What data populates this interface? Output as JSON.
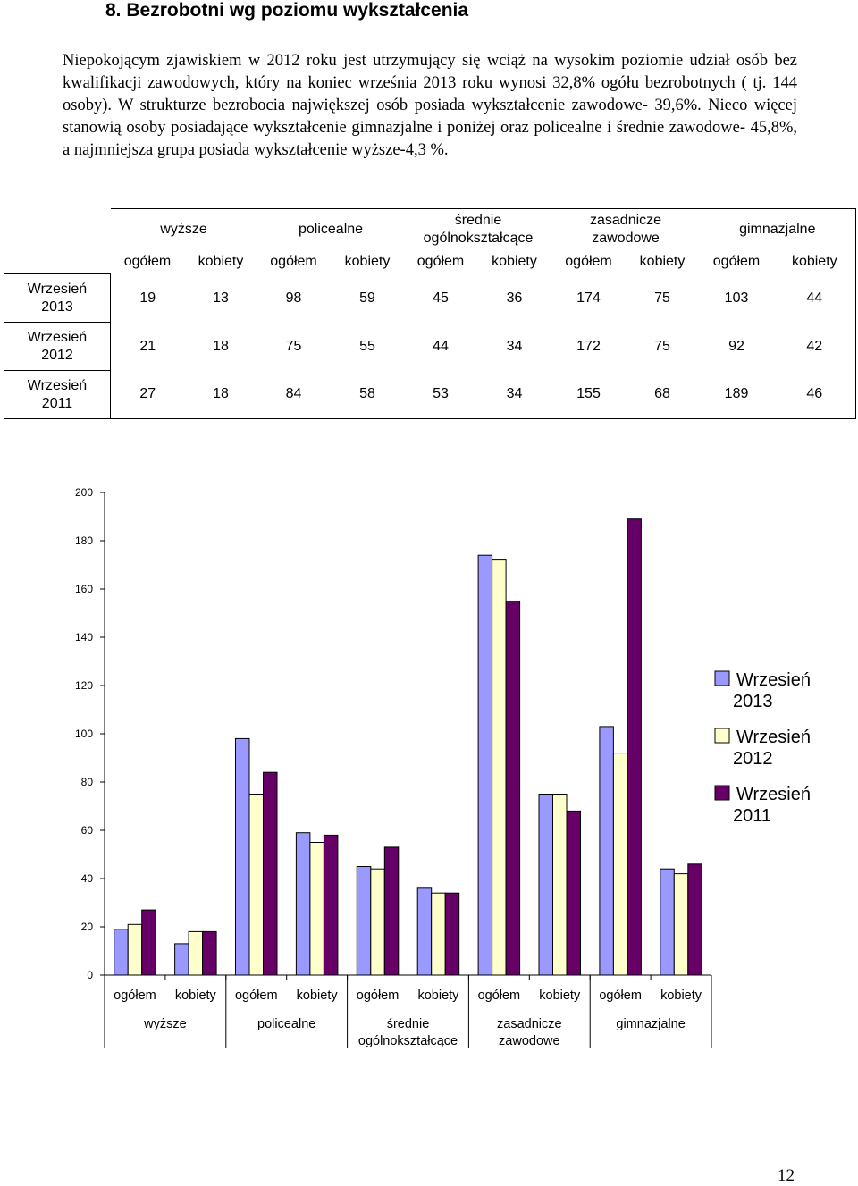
{
  "heading": "8. Bezrobotni wg poziomu wykształcenia",
  "paragraph": "Niepokojącym zjawiskiem w 2012 roku jest utrzymujący się wciąż na wysokim poziomie udział osób bez kwalifikacji zawodowych, który na koniec września 2013 roku wynosi 32,8% ogółu bezrobotnych ( tj. 144 osoby). W strukturze bezrobocia największej osób posiada wykształcenie zawodowe- 39,6%. Nieco więcej stanowią osoby posiadające wykształcenie gimnazjalne i poniżej oraz policealne i średnie zawodowe- 45,8%, a najmniejsza grupa posiada wykształcenie wyższe-4,3 %.",
  "table": {
    "groups": [
      {
        "line1": "wyższe",
        "line2": ""
      },
      {
        "line1": "policealne",
        "line2": ""
      },
      {
        "line1": "średnie",
        "line2": "ogólnokształcące"
      },
      {
        "line1": "zasadnicze",
        "line2": "zawodowe"
      },
      {
        "line1": "gimnazjalne",
        "line2": ""
      }
    ],
    "subheaders": [
      "ogółem",
      "kobiety",
      "ogółem",
      "kobiety",
      "ogółem",
      "kobiety",
      "ogółem",
      "kobiety",
      "ogółem",
      "kobiety"
    ],
    "rows": [
      {
        "year_line1": "Wrzesień",
        "year_line2": "2013",
        "values": [
          "19",
          "13",
          "98",
          "59",
          "45",
          "36",
          "174",
          "75",
          "103",
          "44"
        ]
      },
      {
        "year_line1": "Wrzesień",
        "year_line2": "2012",
        "values": [
          "21",
          "18",
          "75",
          "55",
          "44",
          "34",
          "172",
          "75",
          "92",
          "42"
        ]
      },
      {
        "year_line1": "Wrzesień",
        "year_line2": "2011",
        "values": [
          "27",
          "18",
          "84",
          "58",
          "53",
          "34",
          "155",
          "68",
          "189",
          "46"
        ]
      }
    ]
  },
  "chart_data": {
    "type": "bar",
    "categories": [
      "ogółem",
      "kobiety",
      "ogółem",
      "kobiety",
      "ogółem",
      "kobiety",
      "ogółem",
      "kobiety",
      "ogółem",
      "kobiety"
    ],
    "category_groups": [
      {
        "line1": "wyższe",
        "line2": ""
      },
      {
        "line1": "policealne",
        "line2": ""
      },
      {
        "line1": "średnie",
        "line2": "ogólnokształcące"
      },
      {
        "line1": "zasadnicze",
        "line2": "zawodowe"
      },
      {
        "line1": "gimnazjalne",
        "line2": ""
      }
    ],
    "series": [
      {
        "name": "Wrzesień 2013",
        "name_line1": "Wrzesień",
        "name_line2": "2013",
        "color": "#9999ff",
        "values": [
          19,
          13,
          98,
          59,
          45,
          36,
          174,
          75,
          103,
          44
        ]
      },
      {
        "name": "Wrzesień 2012",
        "name_line1": "Wrzesień",
        "name_line2": "2012",
        "color": "#ffffcc",
        "values": [
          21,
          18,
          75,
          55,
          44,
          34,
          172,
          75,
          92,
          42
        ]
      },
      {
        "name": "Wrzesień 2011",
        "name_line1": "Wrzesień",
        "name_line2": "2011",
        "color": "#660066",
        "values": [
          27,
          18,
          84,
          58,
          53,
          34,
          155,
          68,
          189,
          46
        ]
      }
    ],
    "yticks": [
      0,
      20,
      40,
      60,
      80,
      100,
      120,
      140,
      160,
      180,
      200
    ],
    "ylim": [
      0,
      200
    ],
    "grid": false,
    "legend_position": "right"
  },
  "page_number": "12"
}
